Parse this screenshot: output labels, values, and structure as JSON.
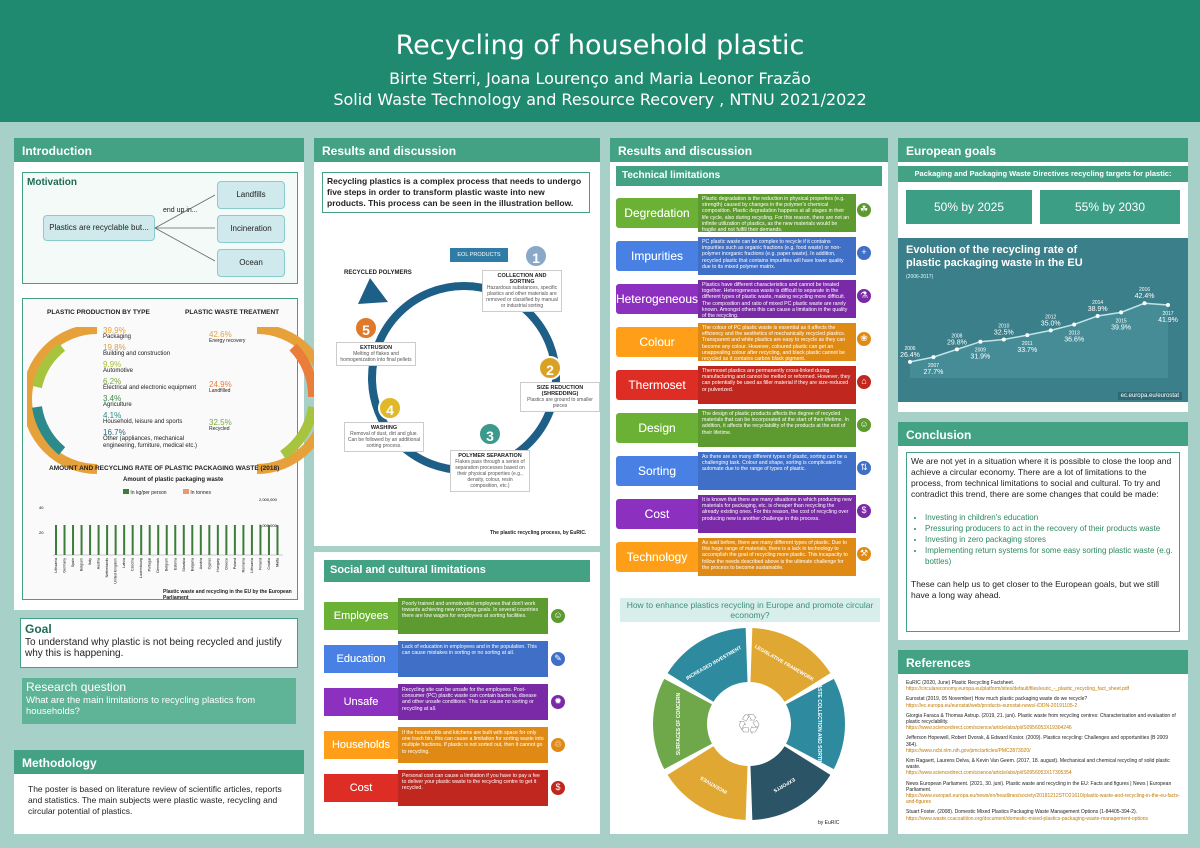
{
  "header": {
    "title": "Recycling of household plastic",
    "authors": "Birte Sterri, Joana Lourenço and Maria Leonor Frazão",
    "course": "Solid Waste Technology and Resource Recovery , NTNU 2021/2022"
  },
  "introduction": {
    "title": "Introduction",
    "motivation_title": "Motivation",
    "plastics_label": "Plastics are recyclable but...",
    "end_up": "end up in...",
    "destinations": [
      "Landfills",
      "Incineration",
      "Ocean"
    ]
  },
  "production": {
    "title": "PLASTIC PRODUCTION BY TYPE",
    "items": [
      {
        "pct": "39.9%",
        "label": "Packaging"
      },
      {
        "pct": "19.8%",
        "label": "Building and construction"
      },
      {
        "pct": "9.9%",
        "label": "Automotive"
      },
      {
        "pct": "6.2%",
        "label": "Electrical and electronic equipment"
      },
      {
        "pct": "3.4%",
        "label": "Agriculture"
      },
      {
        "pct": "4.1%",
        "label": "Household, leisure and sports"
      },
      {
        "pct": "16.7%",
        "label": "Other (appliances, mechanical engineering, furniture, medical etc.)"
      }
    ]
  },
  "treatment": {
    "title": "PLASTIC WASTE TREATMENT",
    "items": [
      {
        "pct": "42.6%",
        "label": "Energy recovery"
      },
      {
        "pct": "24.9%",
        "label": "Landfilled"
      },
      {
        "pct": "32.5%",
        "label": "Recycled"
      }
    ]
  },
  "packaging_chart": {
    "title": "AMOUNT AND RECYCLING RATE OF PLASTIC PACKAGING WASTE (2018)",
    "subtitle": "Amount of plastic packaging waste",
    "legend": [
      "In kg/per person",
      "In tonnes"
    ],
    "y_left": [
      "40",
      "20"
    ],
    "y_right": [
      "2,000,000",
      "1,000,000"
    ],
    "countries": [
      "Lithuania",
      "Germany",
      "Spain",
      "Belgium",
      "Italy",
      "Austria",
      "Netherlands",
      "United Kingdom",
      "Latvia",
      "Czechia",
      "Luxembourg",
      "Portugal",
      "Denmark",
      "Belgium",
      "Estonia",
      "Slovakia",
      "Bulgaria",
      "Austria",
      "Cyprus",
      "Hungary",
      "Greece",
      "Poland",
      "Romania",
      "Lithuania",
      "Finland",
      "Croatia",
      "Malta"
    ],
    "source": "Plastic waste and recycling in the EU by the European Parliament"
  },
  "goal": {
    "title": "Goal",
    "text": "To understand why plastic is not being recycled and justify why this is happening."
  },
  "research": {
    "title": "Research question",
    "text": "What are the main limitations to recycling plastics from households?"
  },
  "methodology": {
    "title": "Methodology",
    "text": "The poster is based on literature review of scientific articles, reports and statistics. The main subjects were plastic waste, recycling and circular potential of plastics."
  },
  "results1": {
    "title": "Results and discussion",
    "intro": "Recycling plastics is a complex process that needs to undergo five steps in order to transform plastic waste into new products. This process can be seen in the illustration bellow.",
    "eol": "EOL PRODUCTS",
    "recycled": "RECYCLED POLYMERS",
    "steps": [
      {
        "n": "1",
        "title": "COLLECTION AND SORTING",
        "desc": "Hazardous substances, specific plastics and other materials are removed or classified by manual or industrial sorting"
      },
      {
        "n": "2",
        "title": "SIZE REDUCTION (SHREDDING)",
        "desc": "Plastics are ground to smaller pieces"
      },
      {
        "n": "3",
        "title": "POLYMER SEPARATION",
        "desc": "Flakes pass through a series of separation processes based on their physical properties (e.g., density, colour, resin composition, etc.)"
      },
      {
        "n": "4",
        "title": "WASHING",
        "desc": "Removal of dust, dirt and glue. Can be followed by an additional sorting process."
      },
      {
        "n": "5",
        "title": "EXTRUSION",
        "desc": "Melting of flakes and homogenization into final pellets"
      }
    ],
    "caption": "The plastic recycling process, by EuRIC."
  },
  "social": {
    "title": "Social and cultural limitations",
    "rows": [
      {
        "label": "Employees",
        "color": "#5d9a2f",
        "icon": "people",
        "text": "Poorly trained and unmotivated employees that don't work towards achieving new recycling goals. In several countries there are low wages for employees at sorting facilities."
      },
      {
        "label": "Education",
        "color": "#3f6fc6",
        "icon": "teacher",
        "text": "Lack of education in employees and in the population. This can cause mistakes in sorting or no sorting at all."
      },
      {
        "label": "Unsafe",
        "color": "#7a2aa6",
        "icon": "virus",
        "text": "Recycling site can be unsafe for the employees. Post-consumer (PC) plastic waste can contain bacteria, disease and other unsafe conditions. This can cause no sorting or recycling at all."
      },
      {
        "label": "Households",
        "color": "#e08a16",
        "icon": "bin",
        "text": "If the households and kitchens are built with space for only one trash bin, this can cause a limitation for sorting waste into multiple fractions. If plastic is not sorted out, then it cannot go to recycling."
      },
      {
        "label": "Cost",
        "color": "#c0271f",
        "icon": "dollar",
        "text": "Personal cost can cause a limitation if you have to pay a fee to deliver your plastic waste to the recycling centre to get it recycled."
      }
    ]
  },
  "results2": {
    "title": "Results and discussion",
    "technical_title": "Technical limitations",
    "rows": [
      {
        "label": "Degredation",
        "color": "#5d9a2f",
        "icon": "leaf",
        "text": "Plastic degradation is the reduction in physical properties (e.g. strength) caused by changes in the polymer's chemical composition. Plastic degradation happens at all stages in their life cycle, also during recycling. For this reason, there are not an infinite utilization of plastics, as the new materials would be fragile and not fulfill their demands."
      },
      {
        "label": "Impurities",
        "color": "#3f6fc6",
        "icon": "plus",
        "text": "PC plastic waste can be complex to recycle if it contains impurities such as organic fractions (e.g. food waste) or non-polymer inorganic fractions (e.g. paper waste). In addition, recycled plastic that contains impurities will have lower quality due to its mixed polymer matrix."
      },
      {
        "label": "Heterogeneous",
        "color": "#7a2aa6",
        "icon": "microscope",
        "text": "Plastics have different characteristics and cannot be treated together. Heterogeneous waste is difficult to separate in the different types of plastic waste, making recycling more difficult. The composition and ratio of mixed PC plastic waste are rarely known. Amongst others this can cause a limitation in the quality of the recycling."
      },
      {
        "label": "Colour",
        "color": "#e08a16",
        "icon": "palette",
        "text": "The colour of PC plastic waste is essential as it affects the efficiency and the aesthetics of mechanically recycled plastics. Transparent and white plastics are easy to recycle as they can become any colour. However, coloured plastic can get an unappealing colour after recycling, and black plastic cannot be recycled as it contains carbon black pigment."
      },
      {
        "label": "Thermoset",
        "color": "#c0271f",
        "icon": "factory",
        "text": "Thermoset plastics are permanently cross-linked during manufacturing and cannot be melted or reformed. However, they can potentially be used as filler material if they are size-reduced or pulverized."
      },
      {
        "label": "Design",
        "color": "#5d9a2f",
        "icon": "people",
        "text": "The design of plastic products affects the degree of recycled materials that can be incorporated at the start of their lifetime. In addition, it affects the recyclability of the products at the end of their lifetime."
      },
      {
        "label": "Sorting",
        "color": "#3f6fc6",
        "icon": "sort",
        "text": "As there are so many different types of plastic, sorting can be a challenging task. Colour and shape, sorting is complicated to automate due to the range of types of plastic."
      },
      {
        "label": "Cost",
        "color": "#7a2aa6",
        "icon": "dollar",
        "text": "It is known that there are many situations in which producing new materials for packaging, etc. is cheaper than recycling the already existing ones. For this reason, the cost of recycling over producing new is another challenge in this process."
      },
      {
        "label": "Technology",
        "color": "#e08a16",
        "icon": "tools",
        "text": "As said before, there are many different types of plastic. Due to this huge range of materials, there is a lack in technology to accomplish the goal of recycling more plastic. This incapacity to follow the needs described above is the ultimate challenge for the process to become sustainable."
      }
    ],
    "enhance_title": "How to enhance plastics recycling in Europe and promote circular economy?",
    "wheel": [
      "INCREASED INVESTMENT",
      "LEGISLATIVE FRAMEWORK",
      "WASTE COLLECTION AND SORTING",
      "EXPORTS",
      "INCENTIVES",
      "SURFACES OF CONCERN"
    ],
    "wheel_source": "by EuRIC"
  },
  "european": {
    "title": "European goals",
    "directive": "Packaging and Packaging Waste Directives recycling targets for plastic:",
    "targets": [
      "50% by 2025",
      "55% by 2030"
    ],
    "chart_title": "Evolution of the recycling rate of plastic packaging waste in the EU",
    "chart_range": "(2006-2017)",
    "source": "ec.europa.eu/eurostat"
  },
  "chart_data": {
    "type": "line",
    "title": "Evolution of the recycling rate of plastic packaging waste in the EU",
    "x": [
      "2006",
      "2007",
      "2008",
      "2009",
      "2010",
      "2011",
      "2012",
      "2013",
      "2014",
      "2015",
      "2016",
      "2017"
    ],
    "series": [
      {
        "values": [
          26.4,
          27.7,
          29.8,
          31.9,
          32.5,
          33.7,
          35.0,
          36.6,
          38.9,
          39.9,
          42.4,
          41.9
        ]
      }
    ]
  },
  "conclusion": {
    "title": "Conclusion",
    "text": "We are not yet in a situation where it is possible to close the loop and achieve a circular economy. There are a lot of limitations to the process, from technical limitations to social and cultural. To try and contradict this trend, there are some changes that could be made:",
    "bullets": [
      "Investing in children's education",
      "Pressuring producers to act in the recovery of their products waste",
      "Investing in zero packaging stores",
      "Implementing return systems for some easy sorting plastic waste (e.g. bottles)"
    ],
    "closing": "These can help us to get closer to the European goals, but we still have a long way ahead."
  },
  "references": {
    "title": "References",
    "items": [
      {
        "text": "EuRIC (2020, June) Plastic Recycling Factsheet.",
        "link": "https://circulareconomy.europa.eu/platform/sites/default/files/euric_-_plastic_recycling_fact_sheet.pdf"
      },
      {
        "text": "Eurostat (2019, 05 November) How much plastic packaging waste do we recycle?",
        "link": "https://ec.europa.eu/eurostat/web/products-eurostat-news/-/DDN-20191105-2"
      },
      {
        "text": "Giorgia Faraca & Thomas Astrup. (2019, 21. juni). Plastic waste from recycling centres: Characterisation and evaluation of plastic recyclability.",
        "link": "https://www.sciencedirect.com/science/article/abs/pii/S0956053X19304246"
      },
      {
        "text": "Jefferson Hopewell, Robert Dvorak, & Edward Kosior. (2009). Plastics recycling: Challenges and opportunities (B 2009 364).",
        "link": "https://www.ncbi.nlm.nih.gov/pmc/articles/PMC2873020/"
      },
      {
        "text": "Kim Ragaert, Laurens Delva, & Kevin Van Geem. (2017, 18. august). Mechanical and chemical recycling of solid plastic waste.",
        "link": "https://www.sciencedirect.com/science/article/abs/pii/S0956053X17305354"
      },
      {
        "text": "News European Parliament. (2021, 30. juni). Plastic waste and recycling in the EU: Facts and figures | News | European Parliament.",
        "link": "https://www.europarl.europa.eu/news/en/headlines/society/20181212STO21610/plastic-waste-and-recycling-in-the-eu-facts-and-figures"
      },
      {
        "text": "Stuart Foster. (2008). Domestic Mixed Plastics Packaging Waste Management Options (1-84405-394-2).",
        "link": "https://www.waste.ccacoalition.org/document/domestic-mixed-plastics-packaging-waste-management-options"
      }
    ]
  }
}
